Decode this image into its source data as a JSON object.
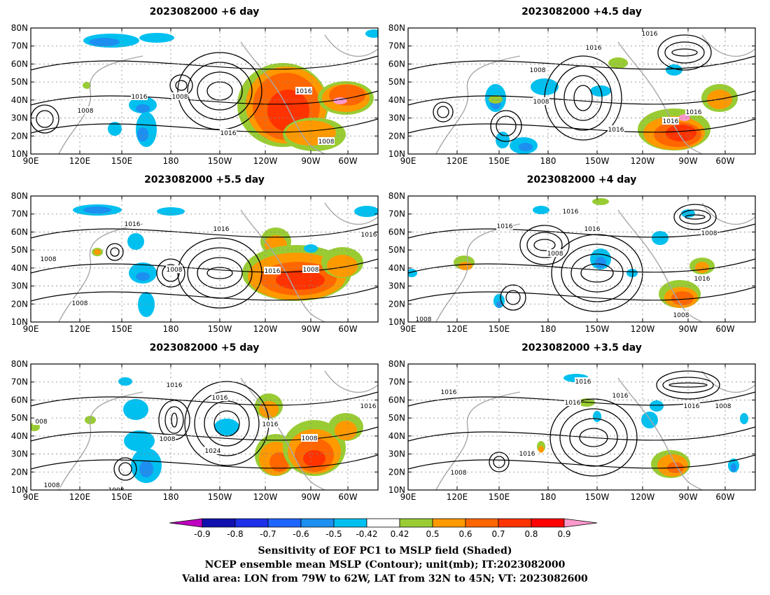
{
  "panels": [
    {
      "title": "2023082000  +6 day",
      "contour_labels": [
        "1016",
        "1008",
        "1016",
        "1008",
        "1016",
        "1008"
      ]
    },
    {
      "title": "2023082000  +4.5 day",
      "contour_labels": [
        "1008",
        "1016",
        "1016",
        "1008",
        "1016",
        "1016",
        "1016"
      ]
    },
    {
      "title": "2023082000  +5.5 day",
      "contour_labels": [
        "1016",
        "1016",
        "1008",
        "1008",
        "1008",
        "1016",
        "1008",
        "1016"
      ]
    },
    {
      "title": "2023082000  +4 day",
      "contour_labels": [
        "1016",
        "1016",
        "1016",
        "1008",
        "1008",
        "1016",
        "1008",
        "1008"
      ]
    },
    {
      "title": "2023082000  +5 day",
      "contour_labels": [
        "1016",
        "1016",
        "1008",
        "1024",
        "1016",
        "1008",
        "1016",
        "008",
        "1008",
        "1008"
      ]
    },
    {
      "title": "2023082000  +3.5 day",
      "contour_labels": [
        "1016",
        "1016",
        "1016",
        "1016",
        "1016",
        "1008",
        "1016",
        "1008"
      ]
    }
  ],
  "lat_labels": [
    "80N",
    "70N",
    "60N",
    "50N",
    "40N",
    "30N",
    "20N",
    "10N"
  ],
  "lon_labels": [
    "90E",
    "120E",
    "150E",
    "180",
    "150W",
    "120W",
    "90W",
    "60W"
  ],
  "colorbar": {
    "labels": [
      "-0.9",
      "-0.8",
      "-0.7",
      "-0.6",
      "-0.5",
      "-0.42",
      "0.42",
      "0.5",
      "0.6",
      "0.7",
      "0.8",
      "0.9"
    ],
    "colors": [
      "#c000c0",
      "#1010b0",
      "#1c30e8",
      "#1e64ff",
      "#1c8ff0",
      "#00c0f0",
      "#ffffff",
      "#99cc33",
      "#ff9900",
      "#ff6600",
      "#ff3300",
      "#ff0000",
      "#ff99cc"
    ]
  },
  "footer": [
    "Sensitivity of EOF PC1 to MSLP field (Shaded)",
    "NCEP ensemble mean MSLP (Contour); unit(mb); IT:2023082000",
    "Valid area: LON from 79W to 62W, LAT from 32N to 45N; VT: 2023082600"
  ]
}
